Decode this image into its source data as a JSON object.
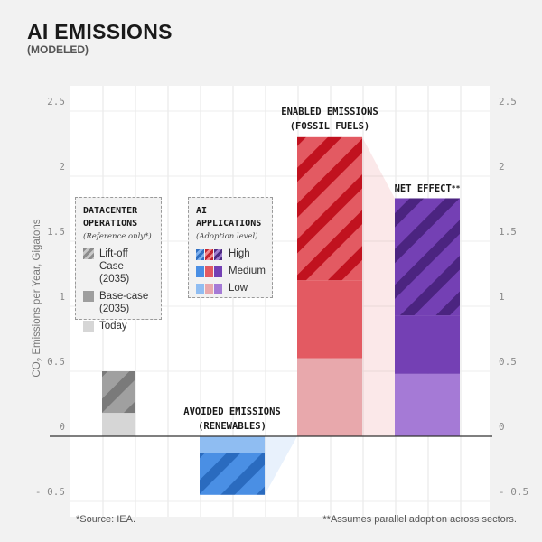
{
  "header": {
    "title": "AI EMISSIONS",
    "subtitle": "(MODELED)"
  },
  "chart_data": {
    "type": "bar",
    "title": "AI EMISSIONS",
    "subtitle": "(MODELED)",
    "ylabel": "CO₂ Emissions per Year, Gigatons",
    "ylabel_parts": [
      "CO",
      "2",
      " Emissions per Year, Gigatons"
    ],
    "ylim": [
      -0.5,
      2.5
    ],
    "y_ticks": [
      "2.5",
      "2",
      "1.5",
      "1",
      "0.5",
      "0",
      "- 0.5"
    ],
    "y_tick_values": [
      2.5,
      2,
      1.5,
      1,
      0.5,
      0,
      -0.5
    ],
    "grid": true,
    "bars": [
      {
        "category": "datacenter",
        "segments": [
          {
            "segment": "Today",
            "from": 0,
            "to": 0.18,
            "color": "#d6d6d6",
            "hatched": false
          },
          {
            "segment": "Base-case (2035)",
            "from": 0.18,
            "to": 0.5,
            "color": "#9e9e9e",
            "hatched": true
          }
        ]
      },
      {
        "category": "Avoided Emissions (Renewables)",
        "segments": [
          {
            "segment": "Low",
            "from": -0.13,
            "to": 0,
            "color": "#8fbdf2",
            "hatched": false
          },
          {
            "segment": "Medium / High",
            "from": -0.45,
            "to": -0.13,
            "color": "#4a8fe4",
            "hatched": true
          }
        ]
      },
      {
        "category": "Enabled Emissions (Fossil Fuels)",
        "segments": [
          {
            "segment": "Low",
            "from": 0,
            "to": 0.6,
            "color": "#e8a8ac",
            "hatched": false
          },
          {
            "segment": "Medium",
            "from": 0.6,
            "to": 1.2,
            "color": "#e35a62",
            "hatched": false
          },
          {
            "segment": "High",
            "from": 1.2,
            "to": 2.3,
            "color": "#e35a62",
            "hatched": true
          }
        ]
      },
      {
        "category": "Net Effect**",
        "segments": [
          {
            "segment": "Low",
            "from": 0,
            "to": 0.48,
            "color": "#a57ad6",
            "hatched": false
          },
          {
            "segment": "Medium",
            "from": 0.48,
            "to": 0.93,
            "color": "#7440b4",
            "hatched": false
          },
          {
            "segment": "High",
            "from": 0.93,
            "to": 1.83,
            "color": "#7440b4",
            "hatched": true
          }
        ]
      }
    ],
    "captions": {
      "enabled": [
        "ENABLED EMISSIONS",
        "(FOSSIL FUELS)"
      ],
      "net": "NET EFFECT",
      "net_mark": "**",
      "avoided": [
        "AVOIDED EMISSIONS",
        "(RENEWABLES)"
      ]
    },
    "legends": {
      "datacenter": {
        "title": [
          "DATACENTER",
          "OPERATIONS"
        ],
        "subtitle": "(Reference only*)",
        "items": [
          {
            "label": "Lift-off Case (2035)",
            "color": "#8c8c8c",
            "hatched": true
          },
          {
            "label": "Base-case (2035)",
            "color": "#9e9e9e",
            "hatched": false
          },
          {
            "label": "Today",
            "color": "#d6d6d6",
            "hatched": false
          }
        ]
      },
      "ai": {
        "title": [
          "AI",
          "APPLICATIONS"
        ],
        "subtitle": "(Adoption level)",
        "items": [
          {
            "label": "High",
            "colors": [
              "#4a8fe4",
              "#e35a62",
              "#7440b4"
            ],
            "hatched": true
          },
          {
            "label": "Medium",
            "colors": [
              "#4a8fe4",
              "#e35a62",
              "#7440b4"
            ],
            "hatched": false
          },
          {
            "label": "Low",
            "colors": [
              "#8fbdf2",
              "#e8a8ac",
              "#a57ad6"
            ],
            "hatched": false
          }
        ]
      }
    },
    "footnotes": {
      "source": "*Source: IEA.",
      "note": "**Assumes parallel adoption across sectors."
    }
  }
}
